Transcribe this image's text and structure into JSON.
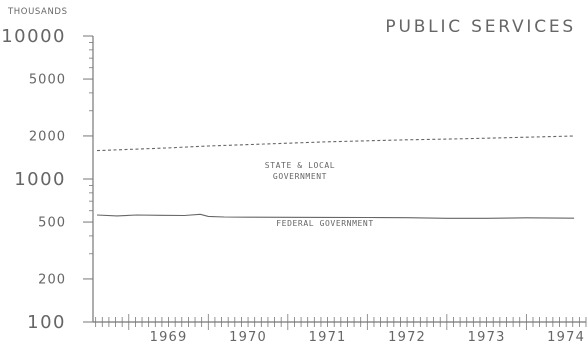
{
  "chart_data": {
    "type": "line",
    "title": "PUBLIC SERVICES",
    "units_label": "THOUSANDS",
    "y_scale": "log",
    "ylim": [
      100,
      10000
    ],
    "y_ticks": [
      100,
      200,
      500,
      1000,
      2000,
      5000,
      10000
    ],
    "y_tick_labels": [
      "100",
      "200",
      "500",
      "1000",
      "2000",
      "5000",
      "10000"
    ],
    "xlim": [
      1968.55,
      1974.75
    ],
    "x_tick_labels": [
      "1969",
      "1970",
      "1971",
      "1972",
      "1973",
      "1974"
    ],
    "x_label_years": [
      1969,
      1970,
      1971,
      1972,
      1973,
      1974
    ],
    "grid": false,
    "series": [
      {
        "name": "STATE & LOCAL GOVERNMENT",
        "style": "dashed",
        "x": [
          1968.6,
          1969.0,
          1969.5,
          1970.0,
          1970.5,
          1971.0,
          1971.5,
          1972.0,
          1972.5,
          1973.0,
          1973.5,
          1974.0,
          1974.6
        ],
        "y": [
          1580,
          1610,
          1650,
          1700,
          1740,
          1780,
          1820,
          1850,
          1880,
          1900,
          1930,
          1960,
          2000
        ]
      },
      {
        "name": "FEDERAL GOVERNMENT",
        "style": "solid",
        "x": [
          1968.6,
          1968.85,
          1969.1,
          1969.4,
          1969.7,
          1969.9,
          1970.0,
          1970.2,
          1970.5,
          1971.0,
          1971.5,
          1972.0,
          1972.5,
          1973.0,
          1973.5,
          1974.0,
          1974.6
        ],
        "y": [
          560,
          552,
          560,
          557,
          556,
          566,
          548,
          542,
          541,
          540,
          539,
          538,
          536,
          531,
          531,
          535,
          532
        ]
      }
    ],
    "annotations": [
      {
        "lines": [
          "STATE & LOCAL",
          "GOVERNMENT"
        ],
        "series": "STATE & LOCAL GOVERNMENT"
      },
      {
        "lines": [
          "FEDERAL GOVERNMENT"
        ],
        "series": "FEDERAL GOVERNMENT"
      }
    ]
  }
}
